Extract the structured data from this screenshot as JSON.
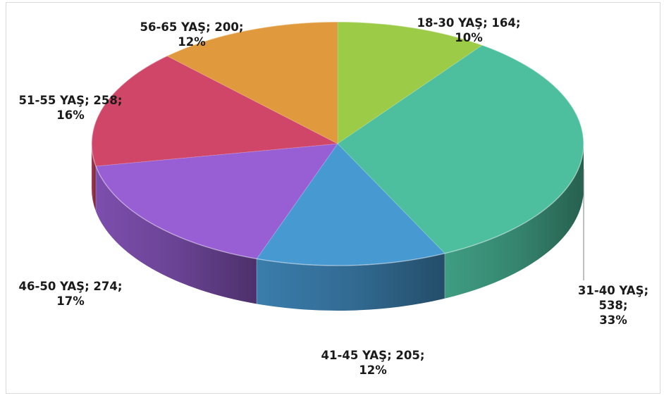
{
  "chart_data": {
    "type": "pie",
    "title": "",
    "slices": [
      {
        "category": "18-30 YAŞ",
        "value": 164,
        "percent": "10%",
        "label_line1": "18-30 YAŞ; 164;",
        "label_line2": "10%",
        "color": "#9ccc47"
      },
      {
        "category": "31-40 YAŞ",
        "value": 538,
        "percent": "33%",
        "label_line1": "31-40 YAŞ;",
        "label_line2": "538;",
        "label_line3": "33%",
        "color": "#4dbf9e"
      },
      {
        "category": "41-45 YAŞ",
        "value": 205,
        "percent": "12%",
        "label_line1": "41-45 YAŞ; 205;",
        "label_line2": "12%",
        "color": "#4799d2"
      },
      {
        "category": "46-50 YAŞ",
        "value": 274,
        "percent": "17%",
        "label_line1": "46-50 YAŞ; 274;",
        "label_line2": "17%",
        "color": "#985fd4"
      },
      {
        "category": "51-55 YAŞ",
        "value": 258,
        "percent": "16%",
        "label_line1": "51-55 YAŞ; 258;",
        "label_line2": "16%",
        "color": "#cf4668"
      },
      {
        "category": "56-65 YAŞ",
        "value": 200,
        "percent": "12%",
        "label_line1": "56-65 YAŞ; 200;",
        "label_line2": "12%",
        "color": "#e09a3d"
      }
    ],
    "style": "3d-pie",
    "legend": "none"
  }
}
